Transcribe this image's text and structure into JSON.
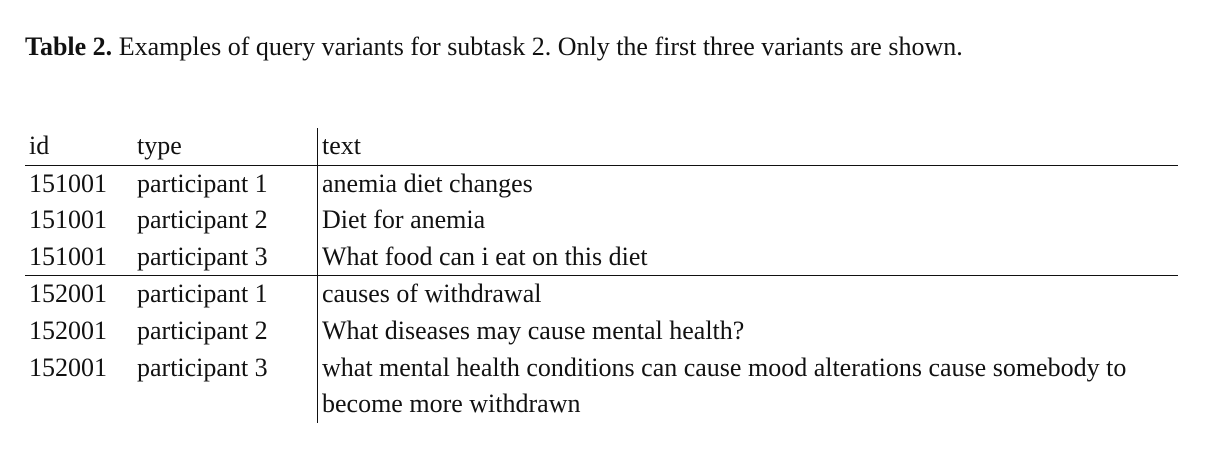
{
  "caption": {
    "label": "Table 2.",
    "text": " Examples of query variants for subtask 2. Only the first three variants are shown."
  },
  "table": {
    "headers": {
      "id": "id",
      "type": "type",
      "text": "text"
    },
    "rows": [
      {
        "id": "151001",
        "type": "participant 1",
        "text": "anemia diet changes"
      },
      {
        "id": "151001",
        "type": "participant 2",
        "text": "Diet for anemia"
      },
      {
        "id": "151001",
        "type": "participant 3",
        "text": "What food can i eat on this diet"
      },
      {
        "id": "152001",
        "type": "participant 1",
        "text": "causes of withdrawal"
      },
      {
        "id": "152001",
        "type": "participant 2",
        "text": "What diseases may cause mental health?"
      },
      {
        "id": "152001",
        "type": "participant 3",
        "text": "what mental health conditions can cause mood alterations cause somebody to become more withdrawn"
      }
    ]
  }
}
